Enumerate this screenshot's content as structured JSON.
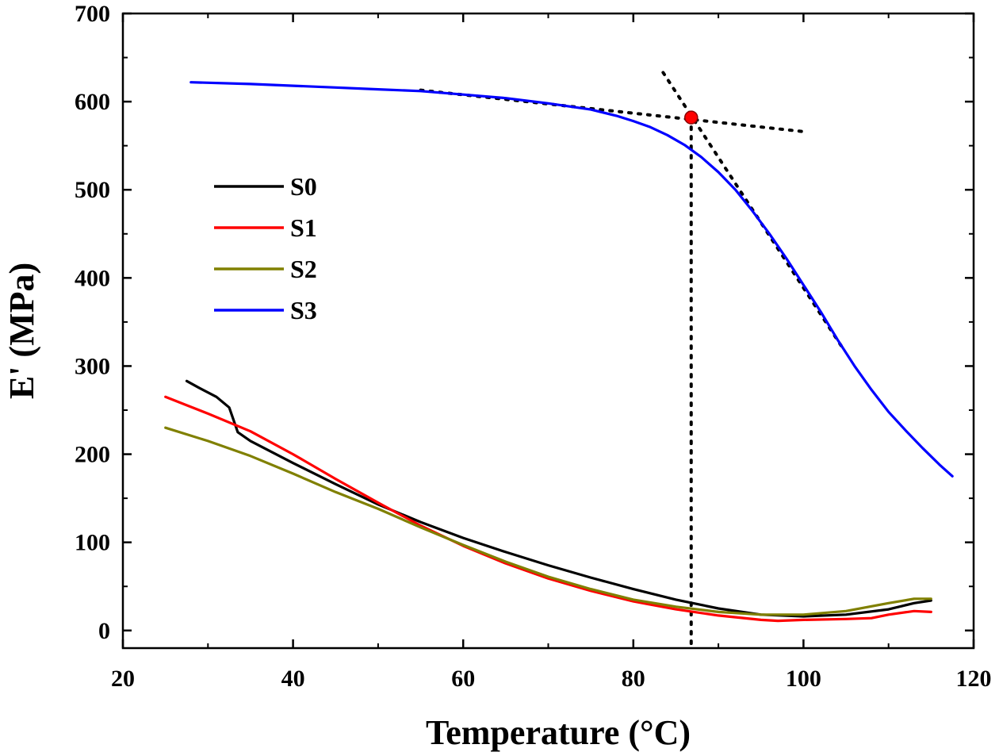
{
  "chart_data": {
    "type": "line",
    "xlabel": "Temperature (°C)",
    "ylabel": "E' (MPa)",
    "xlim": [
      20,
      120
    ],
    "ylim": [
      -20,
      700
    ],
    "xticks": [
      20,
      40,
      60,
      80,
      100,
      120
    ],
    "yticks": [
      0,
      100,
      200,
      300,
      400,
      500,
      600,
      700
    ],
    "legend_position": "center-left",
    "grid": false,
    "series": [
      {
        "name": "S0",
        "color": "#000000",
        "points": [
          [
            27.5,
            283
          ],
          [
            29,
            275
          ],
          [
            31,
            265
          ],
          [
            32.5,
            253
          ],
          [
            33.5,
            225
          ],
          [
            35,
            215
          ],
          [
            40,
            190
          ],
          [
            45,
            166
          ],
          [
            50,
            143
          ],
          [
            55,
            123
          ],
          [
            60,
            105
          ],
          [
            65,
            89
          ],
          [
            70,
            74
          ],
          [
            75,
            60
          ],
          [
            80,
            47
          ],
          [
            85,
            35
          ],
          [
            90,
            25
          ],
          [
            95,
            18
          ],
          [
            100,
            16
          ],
          [
            105,
            18
          ],
          [
            110,
            24
          ],
          [
            113,
            31
          ],
          [
            115,
            34
          ]
        ]
      },
      {
        "name": "S1",
        "color": "#ff0000",
        "points": [
          [
            25,
            265
          ],
          [
            30,
            246
          ],
          [
            35,
            226
          ],
          [
            40,
            200
          ],
          [
            45,
            172
          ],
          [
            50,
            145
          ],
          [
            55,
            119
          ],
          [
            60,
            96
          ],
          [
            65,
            76
          ],
          [
            70,
            59
          ],
          [
            75,
            45
          ],
          [
            80,
            33
          ],
          [
            85,
            24
          ],
          [
            90,
            17
          ],
          [
            95,
            12
          ],
          [
            97,
            11
          ],
          [
            100,
            12
          ],
          [
            105,
            13
          ],
          [
            108,
            14
          ],
          [
            110,
            18
          ],
          [
            113,
            22
          ],
          [
            115,
            21
          ]
        ]
      },
      {
        "name": "S2",
        "color": "#808000",
        "points": [
          [
            25,
            230
          ],
          [
            30,
            215
          ],
          [
            35,
            198
          ],
          [
            40,
            178
          ],
          [
            45,
            157
          ],
          [
            50,
            138
          ],
          [
            55,
            117
          ],
          [
            60,
            97
          ],
          [
            65,
            78
          ],
          [
            70,
            61
          ],
          [
            75,
            47
          ],
          [
            80,
            35
          ],
          [
            85,
            27
          ],
          [
            90,
            21
          ],
          [
            95,
            18
          ],
          [
            100,
            18
          ],
          [
            105,
            22
          ],
          [
            110,
            31
          ],
          [
            113,
            36
          ],
          [
            115,
            36
          ]
        ]
      },
      {
        "name": "S3",
        "color": "#0000ff",
        "points": [
          [
            28,
            622
          ],
          [
            35,
            620
          ],
          [
            40,
            618
          ],
          [
            45,
            616
          ],
          [
            50,
            614
          ],
          [
            55,
            612
          ],
          [
            60,
            608
          ],
          [
            65,
            604
          ],
          [
            70,
            598
          ],
          [
            75,
            591
          ],
          [
            78,
            584
          ],
          [
            80,
            578
          ],
          [
            82,
            571
          ],
          [
            84,
            562
          ],
          [
            86,
            551
          ],
          [
            88,
            537
          ],
          [
            90,
            520
          ],
          [
            92,
            500
          ],
          [
            94,
            476
          ],
          [
            96,
            450
          ],
          [
            98,
            422
          ],
          [
            100,
            392
          ],
          [
            102,
            362
          ],
          [
            104,
            330
          ],
          [
            106,
            300
          ],
          [
            108,
            273
          ],
          [
            110,
            248
          ],
          [
            112,
            227
          ],
          [
            114,
            207
          ],
          [
            116,
            188
          ],
          [
            117.5,
            175
          ]
        ]
      }
    ],
    "annotations": {
      "tangent_lines": [
        {
          "from": [
            55,
            613
          ],
          "to": [
            100,
            566
          ]
        },
        {
          "from": [
            83.5,
            633
          ],
          "to": [
            104.5,
            322
          ]
        }
      ],
      "intersection_point": {
        "x": 86.8,
        "y": 582
      },
      "vertical_dropline_x": 86.8
    }
  }
}
